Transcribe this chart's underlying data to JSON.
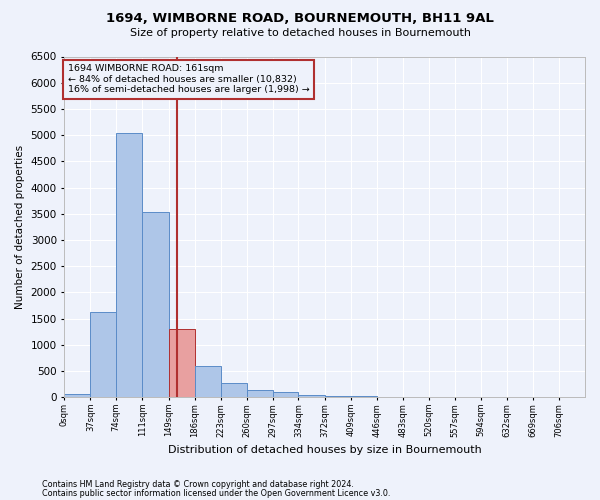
{
  "title": "1694, WIMBORNE ROAD, BOURNEMOUTH, BH11 9AL",
  "subtitle": "Size of property relative to detached houses in Bournemouth",
  "xlabel": "Distribution of detached houses by size in Bournemouth",
  "ylabel": "Number of detached properties",
  "footnote1": "Contains HM Land Registry data © Crown copyright and database right 2024.",
  "footnote2": "Contains public sector information licensed under the Open Government Licence v3.0.",
  "annotation_line1": "1694 WIMBORNE ROAD: 161sqm",
  "annotation_line2": "← 84% of detached houses are smaller (10,832)",
  "annotation_line3": "16% of semi-detached houses are larger (1,998) →",
  "property_size": 161,
  "bar_edges": [
    0,
    37,
    74,
    111,
    149,
    186,
    223,
    260,
    297,
    334,
    372,
    409,
    446,
    483,
    520,
    557,
    594,
    632,
    669,
    706,
    743
  ],
  "bar_heights": [
    60,
    1620,
    5040,
    3530,
    1300,
    590,
    270,
    130,
    100,
    50,
    30,
    15,
    8,
    4,
    2,
    1,
    0,
    0,
    0,
    0
  ],
  "bar_color": "#aec6e8",
  "bar_edge_color": "#5b8cc8",
  "highlight_bar_color": "#e8a0a0",
  "highlight_bar_edge_color": "#b03030",
  "vline_color": "#b03030",
  "annotation_box_color": "#b03030",
  "background_color": "#eef2fb",
  "grid_color": "#ffffff",
  "ylim": [
    0,
    6500
  ],
  "yticks": [
    0,
    500,
    1000,
    1500,
    2000,
    2500,
    3000,
    3500,
    4000,
    4500,
    5000,
    5500,
    6000,
    6500
  ]
}
